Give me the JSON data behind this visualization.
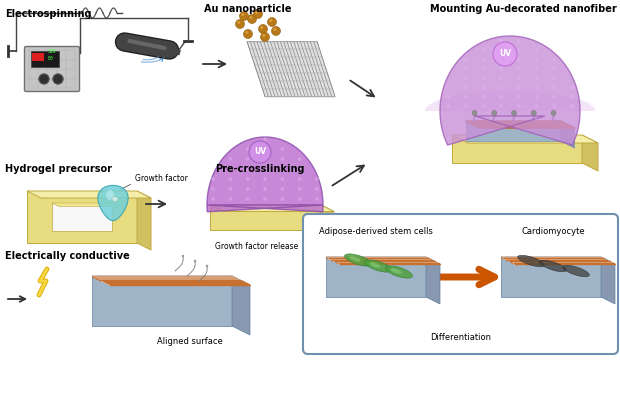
{
  "background_color": "#ffffff",
  "labels": {
    "electrospinning": "Electrospinning",
    "au_nanoparticle": "Au nanoparticle",
    "mounting": "Mounting Au-decorated nanofiber",
    "hydrogel_precursor": "Hydrogel precursor",
    "pre_crosslinking": "Pre-crosslinking",
    "electrically_conductive": "Electrically conductive",
    "growth_factor_release": "Growth factor release",
    "aligned_surface": "Aligned surface",
    "growth_factor": "Growth factor",
    "adipose_stem": "Adipose-derived stem cells",
    "cardiomyocyte": "Cardiomyocyte",
    "differentiation": "Differentiation",
    "uv": "UV"
  },
  "colors": {
    "hydrogel_purple_light": "#d4a8e0",
    "hydrogel_purple_mid": "#b880cc",
    "hydrogel_purple_dark": "#9050a8",
    "nanofiber_orange": "#c87030",
    "substrate_yellow_top": "#f5eeaa",
    "substrate_yellow_front": "#e8dc80",
    "substrate_yellow_right": "#d0c060",
    "substrate_blue_top": "#c8d8ea",
    "substrate_blue_front": "#a0b4c8",
    "substrate_blue_right": "#8898b0",
    "au_particle": "#c89020",
    "arrow_dark": "#333333",
    "orange_arrow": "#cc5500",
    "lightning_yellow": "#f0c020",
    "box_border": "#7090b0",
    "green_cell": "#50a040",
    "dark_cell": "#404040",
    "text_black": "#000000",
    "wire_color": "#555555",
    "machine_body": "#c8c8c8",
    "needle_color": "#555555"
  },
  "figsize": [
    6.2,
    4.09
  ],
  "dpi": 100
}
